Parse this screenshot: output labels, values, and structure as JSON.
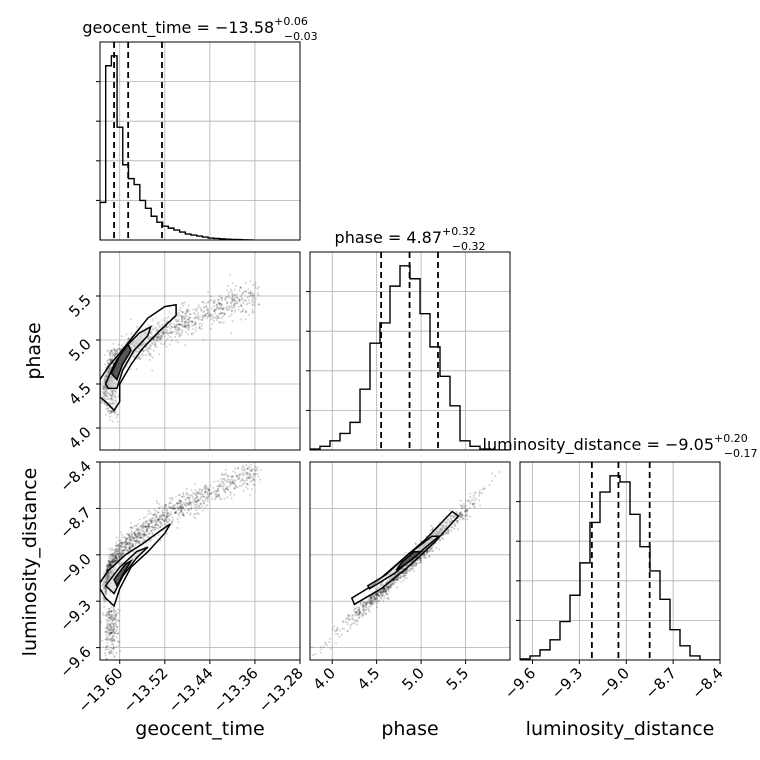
{
  "chart_data": {
    "type": "corner",
    "parameters": [
      {
        "name": "geocent_time",
        "title_text": "geocent_time = −13.58",
        "title_sup": "+0.06",
        "title_sub": "−0.03",
        "range": [
          -13.635,
          -13.28
        ],
        "ticks": [
          -13.6,
          -13.52,
          -13.44,
          -13.36,
          -13.28
        ],
        "tick_labels": [
          "−13.60",
          "−13.52",
          "−13.44",
          "−13.36",
          "−13.28"
        ],
        "quantiles": [
          -13.61,
          -13.585,
          -13.525
        ],
        "hist_edges": [
          -13.635,
          -13.6249,
          -13.6148,
          -13.6047,
          -13.5946,
          -13.5845,
          -13.5744,
          -13.5643,
          -13.5542,
          -13.5441,
          -13.534,
          -13.5239,
          -13.5138,
          -13.5037,
          -13.4936,
          -13.4835,
          -13.4734,
          -13.4633,
          -13.4532,
          -13.4431,
          -13.433,
          -13.4229,
          -13.4128,
          -13.4027,
          -13.3926,
          -13.3825,
          -13.3724,
          -13.3623
        ],
        "hist_counts": [
          0.19,
          0.88,
          0.93,
          0.57,
          0.38,
          0.31,
          0.28,
          0.2,
          0.16,
          0.12,
          0.09,
          0.07,
          0.06,
          0.05,
          0.04,
          0.03,
          0.025,
          0.02,
          0.015,
          0.01,
          0.008,
          0.006,
          0.004,
          0.003,
          0.002,
          0.001,
          0.0
        ]
      },
      {
        "name": "phase",
        "title_text": "phase = 4.87",
        "title_sup": "+0.32",
        "title_sub": "−0.32",
        "range": [
          3.75,
          6.0
        ],
        "ticks": [
          4.0,
          4.5,
          5.0,
          5.5
        ],
        "tick_labels": [
          "4.0",
          "4.5",
          "5.0",
          "5.5"
        ],
        "quantiles": [
          4.55,
          4.87,
          5.19
        ],
        "hist_edges": [
          3.75,
          3.8625,
          3.975,
          4.0875,
          4.2,
          4.3125,
          4.425,
          4.5375,
          4.65,
          4.7625,
          4.875,
          4.9875,
          5.1,
          5.2125,
          5.325,
          5.4375,
          5.55,
          5.6625,
          5.775,
          5.8875,
          6.0
        ],
        "hist_counts": [
          0.005,
          0.02,
          0.05,
          0.09,
          0.15,
          0.33,
          0.58,
          0.69,
          0.89,
          1.0,
          0.93,
          0.74,
          0.56,
          0.4,
          0.24,
          0.05,
          0.02,
          0.005,
          0.0,
          0.0
        ]
      },
      {
        "name": "luminosity_distance",
        "title_text": "luminosity_distance = −9.05",
        "title_sup": "+0.20",
        "title_sub": "−0.17",
        "range": [
          -9.68,
          -8.4
        ],
        "ticks": [
          -9.6,
          -9.3,
          -9.0,
          -8.7,
          -8.4
        ],
        "tick_labels": [
          "−9.6",
          "−9.3",
          "−9.0",
          "−8.7",
          "−8.4"
        ],
        "quantiles": [
          -9.22,
          -9.05,
          -8.85
        ],
        "hist_edges": [
          -9.68,
          -9.616,
          -9.552,
          -9.488,
          -9.424,
          -9.36,
          -9.296,
          -9.232,
          -9.168,
          -9.104,
          -9.04,
          -8.976,
          -8.912,
          -8.848,
          -8.784,
          -8.72,
          -8.656,
          -8.592,
          -8.528,
          -8.464,
          -8.4
        ],
        "hist_counts": [
          0.005,
          0.02,
          0.05,
          0.1,
          0.19,
          0.32,
          0.48,
          0.68,
          0.83,
          0.91,
          0.88,
          0.72,
          0.56,
          0.44,
          0.3,
          0.15,
          0.07,
          0.02,
          0.0,
          0.0
        ]
      }
    ],
    "axis_labels": [
      "geocent_time",
      "phase",
      "luminosity_distance"
    ],
    "grid": true,
    "correlations": {
      "geocent_time_vs_phase": "positive, curved; tail toward low phase near geocent_time −13.62",
      "geocent_time_vs_luminosity_distance": "positive, curved",
      "phase_vs_luminosity_distance": "strong positive linear"
    }
  }
}
